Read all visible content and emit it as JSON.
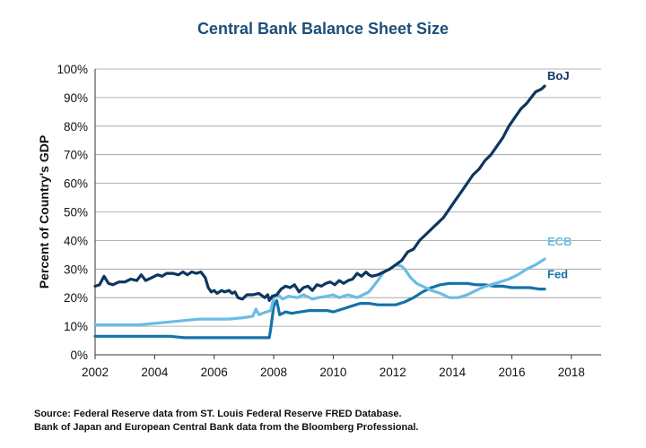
{
  "title": "Central Bank Balance Sheet Size",
  "source_lines": [
    "Source:  Federal Reserve data from ST. Louis Federal Reserve FRED Database.",
    "Bank of Japan and European Central Bank data from the Bloomberg Professional."
  ],
  "chart_data": {
    "type": "line",
    "title": "Central Bank Balance Sheet Size",
    "xlabel": "",
    "ylabel": "Percent of Country's GDP",
    "xlim": [
      2002,
      2019
    ],
    "ylim": [
      0,
      100
    ],
    "x_ticks": [
      2002,
      2004,
      2006,
      2008,
      2010,
      2012,
      2014,
      2016,
      2018
    ],
    "y_ticks": [
      0,
      10,
      20,
      30,
      40,
      50,
      60,
      70,
      80,
      90,
      100
    ],
    "y_tick_labels": [
      "0%",
      "10%",
      "20%",
      "30%",
      "40%",
      "50%",
      "60%",
      "70%",
      "80%",
      "90%",
      "100%"
    ],
    "grid": "horizontal",
    "series": [
      {
        "name": "BoJ",
        "color": "#0d3660",
        "points": [
          [
            2002.0,
            24
          ],
          [
            2002.15,
            24.5
          ],
          [
            2002.3,
            27.5
          ],
          [
            2002.45,
            25
          ],
          [
            2002.6,
            24.5
          ],
          [
            2002.8,
            25.5
          ],
          [
            2003.0,
            25.5
          ],
          [
            2003.2,
            26.5
          ],
          [
            2003.4,
            26
          ],
          [
            2003.55,
            28
          ],
          [
            2003.7,
            26
          ],
          [
            2003.9,
            27
          ],
          [
            2004.1,
            28
          ],
          [
            2004.25,
            27.5
          ],
          [
            2004.4,
            28.5
          ],
          [
            2004.6,
            28.5
          ],
          [
            2004.8,
            28
          ],
          [
            2004.95,
            29
          ],
          [
            2005.1,
            28
          ],
          [
            2005.25,
            29
          ],
          [
            2005.4,
            28.5
          ],
          [
            2005.55,
            29
          ],
          [
            2005.7,
            27
          ],
          [
            2005.8,
            23.5
          ],
          [
            2005.9,
            22
          ],
          [
            2006.0,
            22.5
          ],
          [
            2006.1,
            21.5
          ],
          [
            2006.25,
            22.5
          ],
          [
            2006.35,
            22
          ],
          [
            2006.5,
            22.5
          ],
          [
            2006.6,
            21.5
          ],
          [
            2006.7,
            22
          ],
          [
            2006.8,
            20
          ],
          [
            2006.95,
            19.5
          ],
          [
            2007.1,
            21
          ],
          [
            2007.3,
            21
          ],
          [
            2007.5,
            21.5
          ],
          [
            2007.7,
            20
          ],
          [
            2007.8,
            21
          ],
          [
            2007.85,
            19
          ],
          [
            2007.95,
            20.5
          ],
          [
            2008.1,
            21
          ],
          [
            2008.25,
            23
          ],
          [
            2008.4,
            24
          ],
          [
            2008.55,
            23.5
          ],
          [
            2008.7,
            24.5
          ],
          [
            2008.85,
            22
          ],
          [
            2009.0,
            23.5
          ],
          [
            2009.15,
            24
          ],
          [
            2009.3,
            22.5
          ],
          [
            2009.45,
            24.5
          ],
          [
            2009.6,
            24
          ],
          [
            2009.75,
            25
          ],
          [
            2009.9,
            25.5
          ],
          [
            2010.05,
            24.5
          ],
          [
            2010.2,
            26
          ],
          [
            2010.35,
            25
          ],
          [
            2010.5,
            26
          ],
          [
            2010.65,
            26.5
          ],
          [
            2010.8,
            28.5
          ],
          [
            2010.95,
            27.5
          ],
          [
            2011.1,
            29
          ],
          [
            2011.2,
            28
          ],
          [
            2011.3,
            27.5
          ],
          [
            2011.5,
            28
          ],
          [
            2011.7,
            29
          ],
          [
            2011.9,
            30
          ],
          [
            2012.1,
            31.5
          ],
          [
            2012.3,
            33
          ],
          [
            2012.5,
            36
          ],
          [
            2012.7,
            37
          ],
          [
            2012.9,
            40
          ],
          [
            2013.1,
            42
          ],
          [
            2013.3,
            44
          ],
          [
            2013.5,
            46
          ],
          [
            2013.7,
            48
          ],
          [
            2013.9,
            51
          ],
          [
            2014.1,
            54
          ],
          [
            2014.3,
            57
          ],
          [
            2014.5,
            60
          ],
          [
            2014.7,
            63
          ],
          [
            2014.9,
            65
          ],
          [
            2015.1,
            68
          ],
          [
            2015.3,
            70
          ],
          [
            2015.5,
            73
          ],
          [
            2015.7,
            76
          ],
          [
            2015.9,
            80
          ],
          [
            2016.1,
            83
          ],
          [
            2016.3,
            86
          ],
          [
            2016.5,
            88
          ],
          [
            2016.65,
            90
          ],
          [
            2016.8,
            92
          ],
          [
            2017.0,
            93
          ],
          [
            2017.1,
            94
          ]
        ]
      },
      {
        "name": "ECB",
        "color": "#6bbce4",
        "points": [
          [
            2002.0,
            10.5
          ],
          [
            2002.5,
            10.5
          ],
          [
            2003.0,
            10.5
          ],
          [
            2003.5,
            10.5
          ],
          [
            2004.0,
            11
          ],
          [
            2004.5,
            11.5
          ],
          [
            2005.0,
            12
          ],
          [
            2005.5,
            12.5
          ],
          [
            2006.0,
            12.5
          ],
          [
            2006.5,
            12.5
          ],
          [
            2007.0,
            13
          ],
          [
            2007.3,
            13.5
          ],
          [
            2007.4,
            16
          ],
          [
            2007.5,
            14
          ],
          [
            2007.75,
            15
          ],
          [
            2007.9,
            15.5
          ],
          [
            2008.0,
            20
          ],
          [
            2008.15,
            21
          ],
          [
            2008.3,
            19.5
          ],
          [
            2008.5,
            20.5
          ],
          [
            2008.8,
            20
          ],
          [
            2009.0,
            21
          ],
          [
            2009.3,
            19.5
          ],
          [
            2009.5,
            20
          ],
          [
            2009.8,
            20.5
          ],
          [
            2010.0,
            21
          ],
          [
            2010.2,
            20
          ],
          [
            2010.5,
            21
          ],
          [
            2010.8,
            20
          ],
          [
            2011.0,
            21
          ],
          [
            2011.2,
            22
          ],
          [
            2011.5,
            26
          ],
          [
            2011.7,
            29
          ],
          [
            2011.9,
            30
          ],
          [
            2012.1,
            31.5
          ],
          [
            2012.3,
            31
          ],
          [
            2012.4,
            30
          ],
          [
            2012.6,
            27
          ],
          [
            2012.8,
            25
          ],
          [
            2013.0,
            24
          ],
          [
            2013.3,
            22.5
          ],
          [
            2013.6,
            21.5
          ],
          [
            2013.9,
            20
          ],
          [
            2014.2,
            20
          ],
          [
            2014.5,
            21
          ],
          [
            2014.8,
            22.5
          ],
          [
            2015.0,
            23.5
          ],
          [
            2015.3,
            24.5
          ],
          [
            2015.6,
            25.5
          ],
          [
            2015.9,
            26.5
          ],
          [
            2016.2,
            28
          ],
          [
            2016.5,
            30
          ],
          [
            2016.8,
            31.5
          ],
          [
            2017.1,
            33.5
          ]
        ]
      },
      {
        "name": "Fed",
        "color": "#1672a8",
        "points": [
          [
            2002.0,
            6.5
          ],
          [
            2002.5,
            6.5
          ],
          [
            2003.0,
            6.5
          ],
          [
            2003.5,
            6.5
          ],
          [
            2004.0,
            6.5
          ],
          [
            2004.5,
            6.5
          ],
          [
            2005.0,
            6
          ],
          [
            2005.5,
            6
          ],
          [
            2006.0,
            6
          ],
          [
            2006.5,
            6
          ],
          [
            2007.0,
            6
          ],
          [
            2007.5,
            6
          ],
          [
            2007.85,
            6
          ],
          [
            2007.9,
            9
          ],
          [
            2008.0,
            17
          ],
          [
            2008.1,
            19
          ],
          [
            2008.2,
            14
          ],
          [
            2008.4,
            15
          ],
          [
            2008.6,
            14.5
          ],
          [
            2008.9,
            15
          ],
          [
            2009.2,
            15.5
          ],
          [
            2009.5,
            15.5
          ],
          [
            2009.8,
            15.5
          ],
          [
            2010.0,
            15
          ],
          [
            2010.3,
            16
          ],
          [
            2010.6,
            17
          ],
          [
            2010.9,
            18
          ],
          [
            2011.2,
            18
          ],
          [
            2011.5,
            17.5
          ],
          [
            2011.8,
            17.5
          ],
          [
            2012.1,
            17.5
          ],
          [
            2012.4,
            18.5
          ],
          [
            2012.7,
            20
          ],
          [
            2013.0,
            22
          ],
          [
            2013.3,
            23.5
          ],
          [
            2013.6,
            24.5
          ],
          [
            2013.9,
            25
          ],
          [
            2014.2,
            25
          ],
          [
            2014.5,
            25
          ],
          [
            2014.8,
            24.5
          ],
          [
            2015.1,
            24.5
          ],
          [
            2015.4,
            24
          ],
          [
            2015.7,
            24
          ],
          [
            2016.0,
            23.5
          ],
          [
            2016.3,
            23.5
          ],
          [
            2016.6,
            23.5
          ],
          [
            2016.9,
            23
          ],
          [
            2017.1,
            23
          ]
        ]
      }
    ],
    "legend": [
      {
        "label": "BoJ",
        "color": "#0d3660",
        "series": "BoJ"
      },
      {
        "label": "ECB",
        "color": "#6bbce4",
        "series": "ECB"
      },
      {
        "label": "Fed",
        "color": "#1672a8",
        "series": "Fed"
      }
    ],
    "legend_placement": "right, next to line ends"
  }
}
